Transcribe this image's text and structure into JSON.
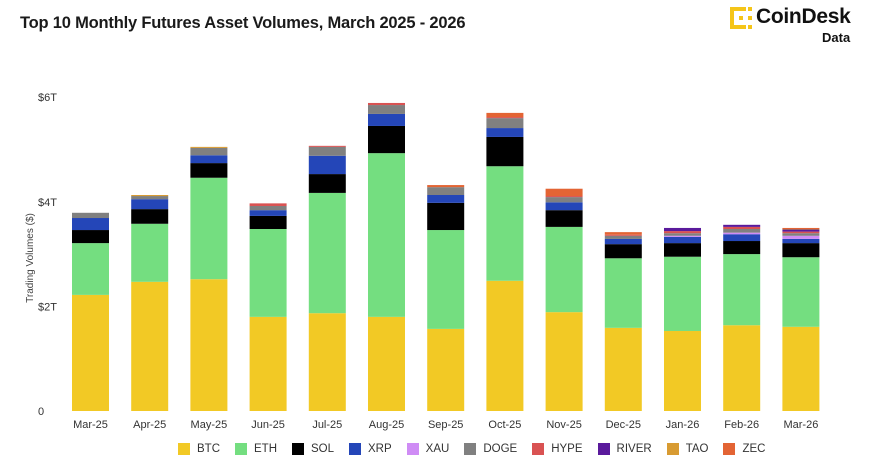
{
  "header": {
    "title": "Top 10 Monthly Futures Asset Volumes, March 2025 - 2026"
  },
  "brand": {
    "name": "CoinDesk",
    "sub": "Data",
    "color": "#f5c518",
    "icon": "coindesk-logo-icon"
  },
  "chart_data": {
    "type": "bar",
    "stacked": true,
    "title": "Top 10 Monthly Futures Asset Volumes, March 2025 - 2026",
    "xlabel": "",
    "ylabel": "Trading Volumes ($)",
    "ylim": [
      0,
      6.3
    ],
    "yticks": [
      0,
      2,
      4,
      6
    ],
    "ytick_labels": [
      "0",
      "$2T",
      "$4T",
      "$6T"
    ],
    "grid": false,
    "legend_position": "bottom",
    "units": "trillions USD",
    "categories": [
      "Mar-25",
      "Apr-25",
      "May-25",
      "Jun-25",
      "Jul-25",
      "Aug-25",
      "Sep-25",
      "Oct-25",
      "Nov-25",
      "Dec-25",
      "Jan-26",
      "Feb-26",
      "Mar-26"
    ],
    "series": [
      {
        "name": "BTC",
        "color": "#f2c925",
        "values": [
          2.22,
          2.47,
          2.52,
          1.8,
          1.87,
          1.8,
          1.57,
          2.49,
          1.89,
          1.59,
          1.53,
          1.64,
          1.61
        ]
      },
      {
        "name": "ETH",
        "color": "#74de80",
        "values": [
          0.99,
          1.11,
          1.94,
          1.68,
          2.3,
          3.13,
          1.89,
          2.19,
          1.63,
          1.33,
          1.42,
          1.36,
          1.33
        ]
      },
      {
        "name": "SOL",
        "color": "#000000",
        "values": [
          0.25,
          0.28,
          0.28,
          0.25,
          0.36,
          0.52,
          0.52,
          0.56,
          0.32,
          0.27,
          0.26,
          0.25,
          0.27
        ]
      },
      {
        "name": "XRP",
        "color": "#2446b8",
        "values": [
          0.23,
          0.19,
          0.15,
          0.11,
          0.35,
          0.23,
          0.15,
          0.17,
          0.15,
          0.1,
          0.12,
          0.13,
          0.08
        ]
      },
      {
        "name": "XAU",
        "color": "#cf8cf5",
        "values": [
          0,
          0,
          0,
          0,
          0,
          0,
          0,
          0,
          0,
          0,
          0.02,
          0.03,
          0.06
        ]
      },
      {
        "name": "DOGE",
        "color": "#808080",
        "values": [
          0.1,
          0.06,
          0.14,
          0.08,
          0.17,
          0.17,
          0.15,
          0.19,
          0.1,
          0.06,
          0.05,
          0.07,
          0.05
        ]
      },
      {
        "name": "HYPE",
        "color": "#d95252",
        "values": [
          0,
          0,
          0,
          0.05,
          0.02,
          0.04,
          0,
          0.02,
          0.02,
          0.02,
          0.04,
          0.04,
          0.03
        ]
      },
      {
        "name": "RIVER",
        "color": "#5a1a9c",
        "values": [
          0,
          0,
          0,
          0,
          0,
          0,
          0,
          0,
          0,
          0,
          0.06,
          0.04,
          0.04
        ]
      },
      {
        "name": "TAO",
        "color": "#d89b32",
        "values": [
          0,
          0.02,
          0.02,
          0,
          0,
          0,
          0,
          0,
          0,
          0,
          0,
          0,
          0.01
        ]
      },
      {
        "name": "ZEC",
        "color": "#e36434",
        "values": [
          0,
          0,
          0,
          0,
          0,
          0,
          0.04,
          0.08,
          0.14,
          0.05,
          0,
          0,
          0.02
        ]
      }
    ]
  }
}
